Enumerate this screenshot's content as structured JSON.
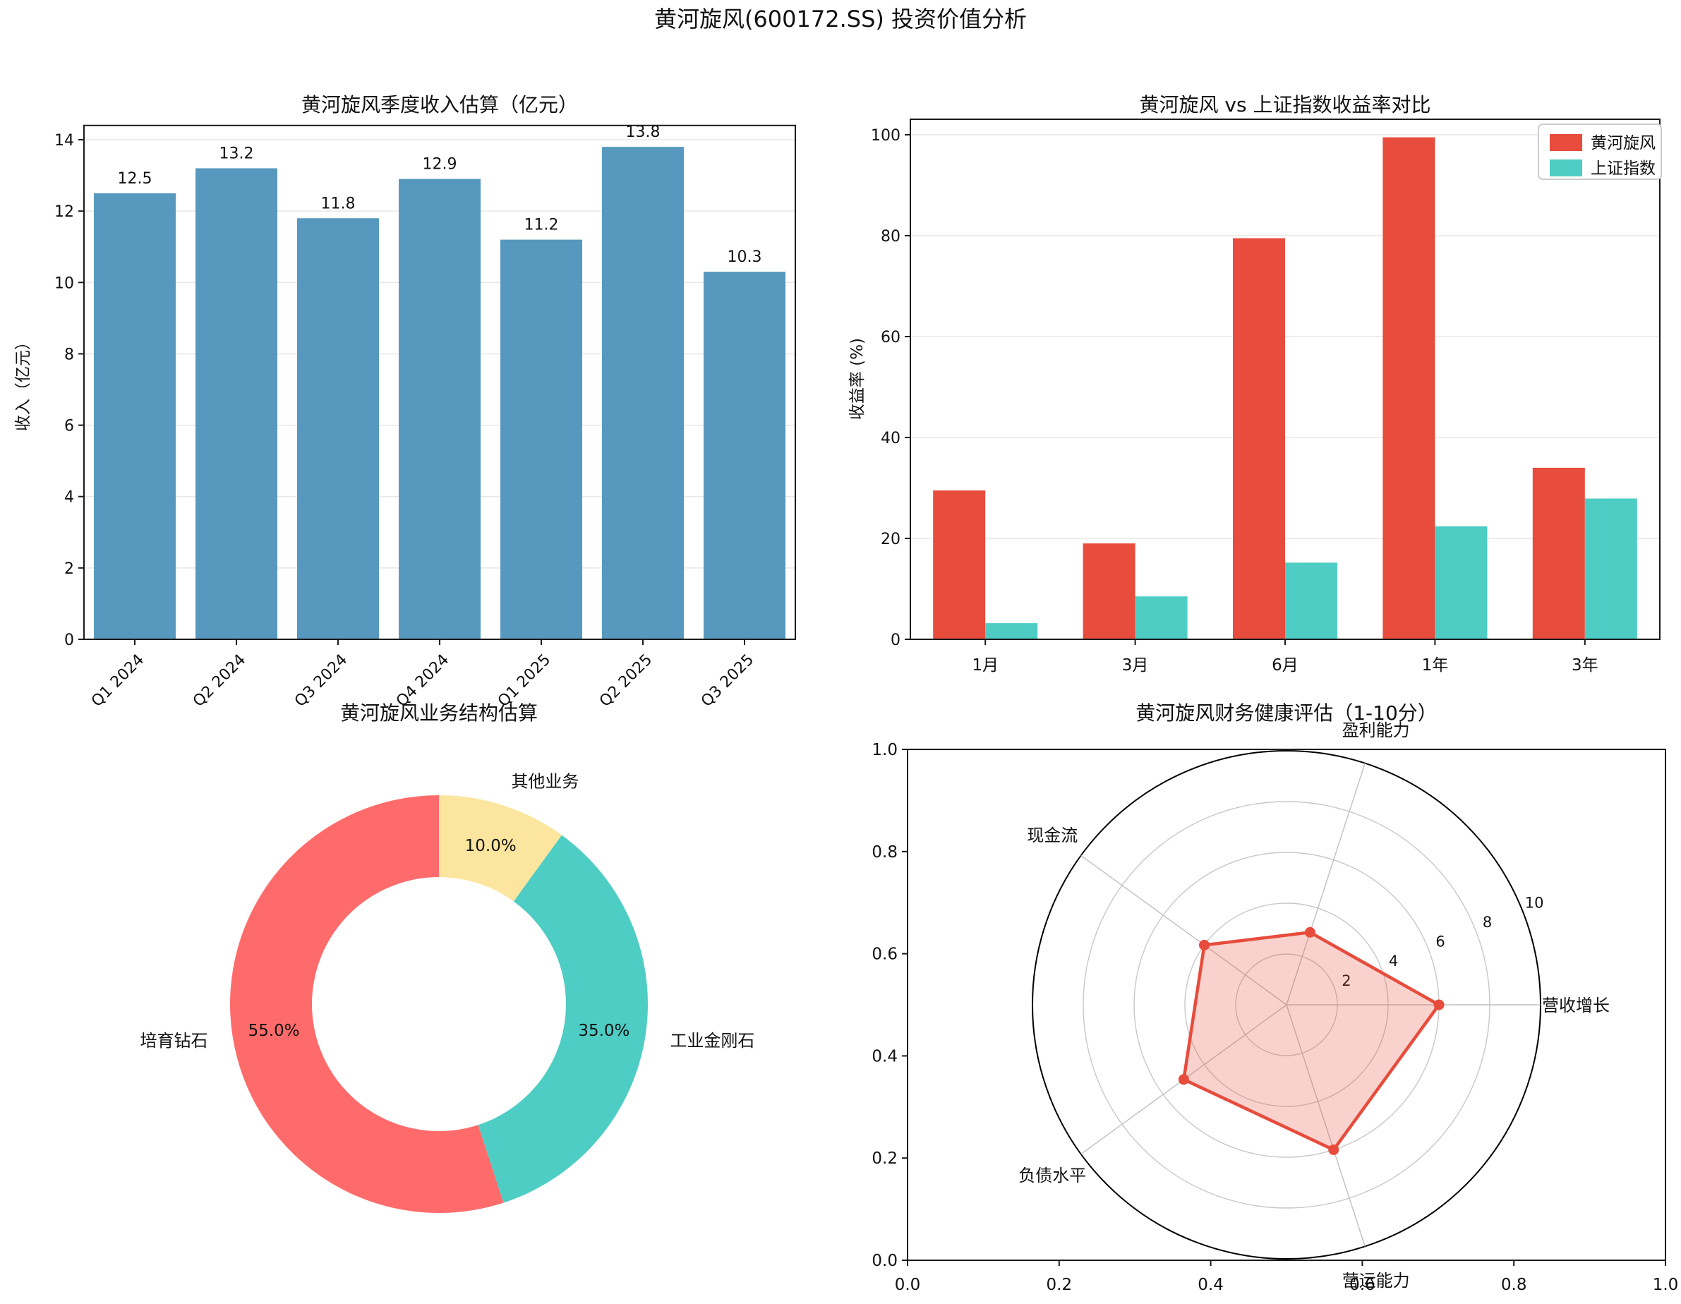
{
  "suptitle": "黄河旋风(600172.SS) 投资价值分析",
  "chart_data": [
    {
      "id": "quarterly_revenue",
      "type": "bar",
      "title": "黄河旋风季度收入估算（亿元）",
      "xlabel": "",
      "ylabel": "收入（亿元）",
      "categories": [
        "Q1 2024",
        "Q2 2024",
        "Q3 2024",
        "Q4 2024",
        "Q1 2025",
        "Q2 2025",
        "Q3 2025"
      ],
      "values": [
        12.5,
        13.2,
        11.8,
        12.9,
        11.2,
        13.8,
        10.3
      ],
      "value_labels": [
        "12.5",
        "13.2",
        "11.8",
        "12.9",
        "11.2",
        "13.8",
        "10.3"
      ],
      "bar_color": "#5799BE",
      "ylim": [
        0,
        14.4
      ],
      "yticks": [
        0,
        2,
        4,
        6,
        8,
        10,
        12,
        14
      ],
      "grid": true,
      "xtick_rotation": 45
    },
    {
      "id": "returns_comparison",
      "type": "bar",
      "title": "黄河旋风 vs 上证指数收益率对比",
      "xlabel": "",
      "ylabel": "收益率 (%)",
      "categories": [
        "1月",
        "3月",
        "6月",
        "1年",
        "3年"
      ],
      "series": [
        {
          "name": "黄河旋风",
          "color": "#E74C3C",
          "values": [
            29.5,
            19.0,
            79.5,
            99.5,
            34.0
          ]
        },
        {
          "name": "上证指数",
          "color": "#4ECDC4",
          "values": [
            3.2,
            8.5,
            15.2,
            22.4,
            27.9
          ]
        }
      ],
      "ylim": [
        0,
        103
      ],
      "yticks": [
        0,
        20,
        40,
        60,
        80,
        100
      ],
      "grid": true,
      "legend_position": "upper right"
    },
    {
      "id": "business_mix",
      "type": "pie",
      "title": "黄河旋风业务结构估算",
      "donut": true,
      "start_angle": 90,
      "direction": "counterclockwise",
      "slices": [
        {
          "label": "培育钻石",
          "value": 55.0,
          "pct_label": "55.0%",
          "color": "#FF6B6B"
        },
        {
          "label": "工业金刚石",
          "value": 35.0,
          "pct_label": "35.0%",
          "color": "#4ECDC4"
        },
        {
          "label": "其他业务",
          "value": 10.0,
          "pct_label": "10.0%",
          "color": "#FCE59E"
        }
      ]
    },
    {
      "id": "financial_health_radar",
      "type": "radar",
      "title": "黄河旋风财务健康评估（1-10分）",
      "rlim": [
        0,
        10
      ],
      "ring_ticks": [
        2,
        4,
        6,
        8,
        10
      ],
      "line_color": "#E74C3C",
      "fill_color": "rgba(231,76,60,0.25)",
      "axes": [
        {
          "label": "盈利能力",
          "angle_deg": 72,
          "value": 3
        },
        {
          "label": "营收增长",
          "angle_deg": 0,
          "value": 6
        },
        {
          "label": "营运能力",
          "angle_deg": 288,
          "value": 6
        },
        {
          "label": "负债水平",
          "angle_deg": 216,
          "value": 5
        },
        {
          "label": "现金流",
          "angle_deg": 144,
          "value": 4
        }
      ],
      "frame_xticks": [
        "0.0",
        "0.2",
        "0.4",
        "0.6",
        "0.8",
        "1.0"
      ],
      "frame_yticks": [
        "0.0",
        "0.2",
        "0.4",
        "0.6",
        "0.8",
        "1.0"
      ]
    }
  ]
}
